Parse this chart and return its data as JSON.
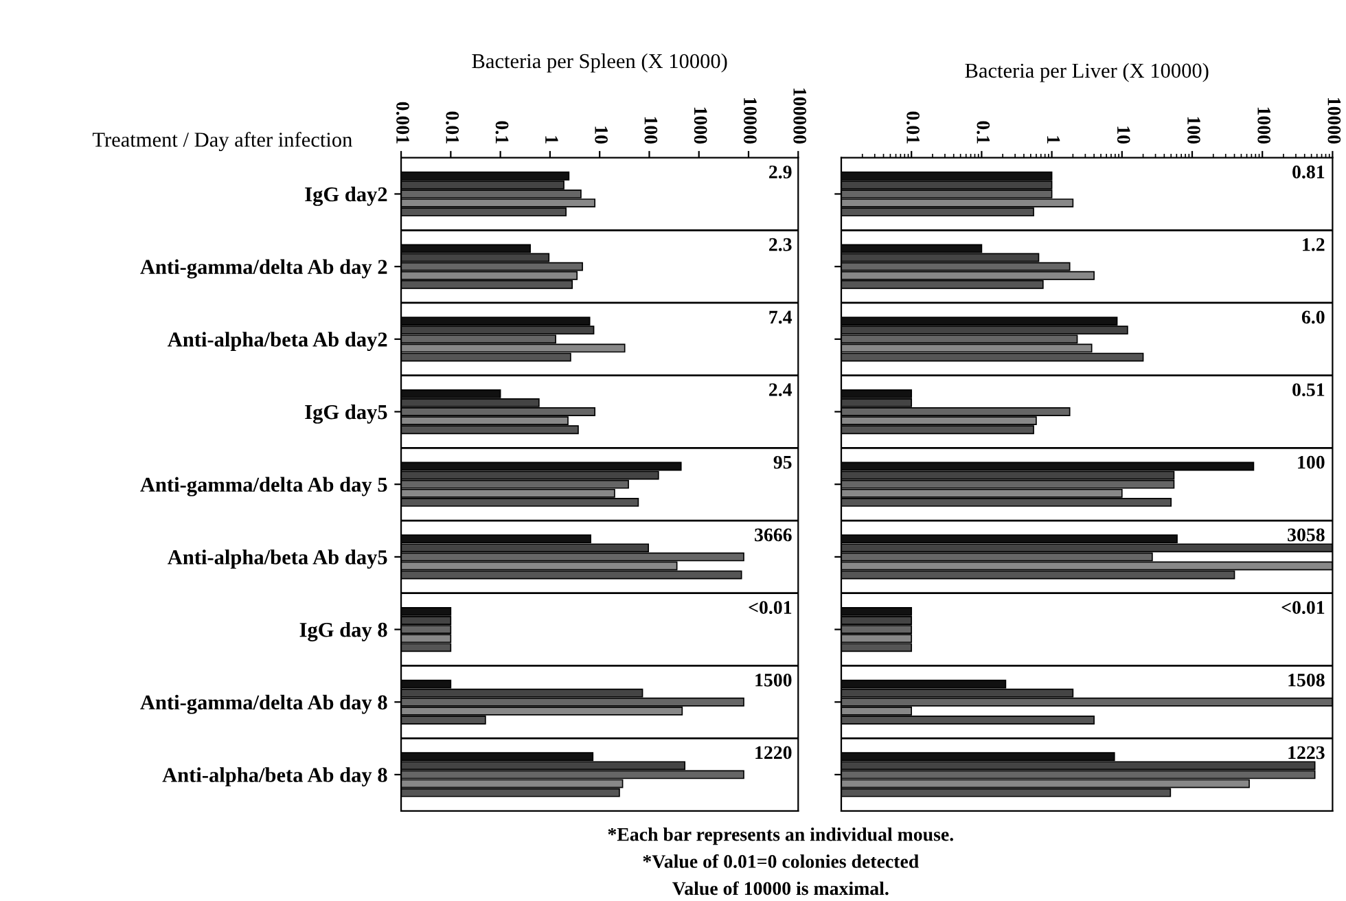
{
  "chart_data": [
    {
      "type": "bar",
      "orientation": "horizontal",
      "log": "x",
      "xlabel": "Bacteria per Spleen (X 10000)",
      "ylabel": "Treatment / Day after infection",
      "tick_labels": "xy",
      "categories": [
        "IgG day2",
        "Anti-gamma/delta Ab day 2",
        "Anti-alpha/beta Ab day2",
        "IgG day5",
        "Anti-gamma/delta Ab day 5",
        "Anti-alpha/beta Ab day5",
        "IgG day 8",
        "Anti-gamma/delta Ab day 8",
        "Anti-alpha/beta Ab day 8"
      ],
      "xlim": [
        0.001,
        100000
      ],
      "xticks": [
        0.001,
        0.01,
        0.1,
        1,
        10,
        100,
        1000,
        10000,
        100000
      ],
      "series": [
        {
          "color": "#111111",
          "values": [
            2.4,
            0.4,
            6.3,
            0.1,
            437,
            6.6,
            0.01,
            0.01,
            7.3
          ]
        },
        {
          "color": "#444444",
          "values": [
            1.9,
            0.95,
            7.6,
            0.6,
            153,
            96,
            0.01,
            73,
            520
          ]
        },
        {
          "color": "#666666",
          "values": [
            4.2,
            4.5,
            1.3,
            8,
            38,
            8000,
            0.01,
            8000,
            8000
          ]
        },
        {
          "color": "#888888",
          "values": [
            8,
            3.5,
            32,
            2.3,
            20,
            360,
            0.01,
            460,
            29
          ]
        },
        {
          "color": "#555555",
          "values": [
            2.1,
            2.8,
            2.6,
            3.7,
            60,
            7200,
            0.01,
            0.05,
            25
          ]
        }
      ],
      "annotations": [
        "2.9",
        "2.3",
        "7.4",
        "2.4",
        "95",
        "3666",
        "<0.01",
        "1500",
        "1220",
        "*Each bar represents an individual mouse.",
        "*Value of 0.01=0 colonies detected",
        "Value of 10000 is maximal."
      ]
    },
    {
      "type": "bar",
      "orientation": "horizontal",
      "log": "x",
      "xlabel": "Bacteria per Liver (X 10000)",
      "tick_labels": "x",
      "categories": [
        null,
        null,
        null,
        null,
        null,
        null,
        null,
        null,
        null
      ],
      "xlim": [
        0.001,
        10000
      ],
      "xticks": [
        0.01,
        0.1,
        1,
        10,
        100,
        1000,
        10000
      ],
      "series": [
        {
          "color": "#111111",
          "values": [
            1.0,
            0.1,
            8.5,
            0.01,
            750,
            61,
            0.01,
            0.22,
            7.8
          ]
        },
        {
          "color": "#444444",
          "values": [
            1.0,
            0.65,
            12,
            0.01,
            55,
            10000,
            0.01,
            2.0,
            5600
          ]
        },
        {
          "color": "#666666",
          "values": [
            1.0,
            1.8,
            2.3,
            1.8,
            55,
            27,
            0.01,
            10000,
            5600
          ]
        },
        {
          "color": "#888888",
          "values": [
            2.0,
            4,
            3.7,
            0.6,
            10,
            10000,
            0.01,
            0.01,
            650
          ]
        },
        {
          "color": "#555555",
          "values": [
            0.55,
            0.75,
            20,
            0.55,
            50,
            400,
            0.01,
            4.0,
            49
          ]
        }
      ],
      "annotations": [
        "0.81",
        "1.2",
        "6.0",
        "0.51",
        "100",
        "3058",
        "<0.01",
        "1508",
        "1223"
      ]
    }
  ]
}
